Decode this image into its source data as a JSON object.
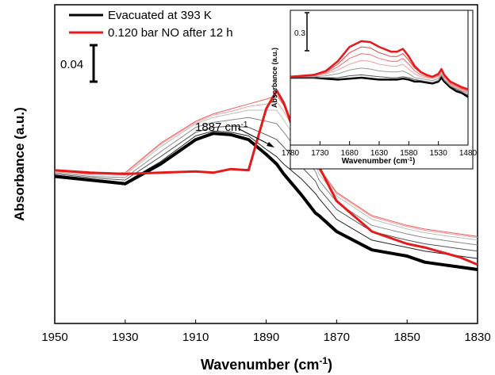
{
  "chart_data": [
    {
      "type": "line",
      "xlabel": "Wavenumber (cm",
      "xlabel_sup": "-1",
      "xlabel_close": ")",
      "ylabel": "Absorbance (a.u.)",
      "x_reversed": true,
      "xlim": [
        1950,
        1830
      ],
      "x_ticks": [
        "1950",
        "1930",
        "1910",
        "1890",
        "1870",
        "1850",
        "1830"
      ],
      "y_ticks": [],
      "grid": false,
      "legend_position": "top-left",
      "legend": [
        {
          "label": "Evacuated at 393 K",
          "color": "#000000"
        },
        {
          "label": "0.120 bar NO after 12 h",
          "color": "#e41a1c"
        }
      ],
      "scale_bar": {
        "label": "0.04",
        "value": 0.04
      },
      "annotation": {
        "text": "1887 cm",
        "sup": "-1",
        "x": 1887
      },
      "x": [
        1950,
        1940,
        1930,
        1920,
        1910,
        1905,
        1900,
        1895,
        1890,
        1887,
        1885,
        1880,
        1876,
        1875,
        1870,
        1860,
        1850,
        1845,
        1840,
        1835,
        1830
      ],
      "series": [
        {
          "name": "Evacuated at 393 K",
          "color": "#000000",
          "width": 4,
          "values": [
            0.0,
            -0.003,
            -0.006,
            0.01,
            0.03,
            0.035,
            0.034,
            0.03,
            0.018,
            0.01,
            0.002,
            -0.015,
            -0.03,
            -0.032,
            -0.045,
            -0.06,
            -0.065,
            -0.07,
            -0.072,
            -0.074,
            -0.076
          ]
        },
        {
          "name": "",
          "color": "#222222",
          "width": 1,
          "values": [
            0.001,
            -0.002,
            -0.005,
            0.012,
            0.033,
            0.037,
            0.036,
            0.033,
            0.022,
            0.016,
            0.01,
            -0.002,
            -0.014,
            -0.018,
            -0.035,
            -0.052,
            -0.058,
            -0.061,
            -0.063,
            -0.065,
            -0.067
          ]
        },
        {
          "name": "",
          "color": "#555555",
          "width": 1,
          "values": [
            0.002,
            -0.001,
            -0.003,
            0.016,
            0.036,
            0.04,
            0.041,
            0.04,
            0.034,
            0.03,
            0.024,
            0.008,
            -0.004,
            -0.01,
            -0.027,
            -0.045,
            -0.052,
            -0.055,
            -0.057,
            -0.059,
            -0.061
          ]
        },
        {
          "name": "",
          "color": "#888888",
          "width": 1,
          "values": [
            0.003,
            0.0,
            -0.001,
            0.02,
            0.04,
            0.044,
            0.046,
            0.048,
            0.045,
            0.043,
            0.036,
            0.017,
            0.004,
            -0.003,
            -0.021,
            -0.04,
            -0.047,
            -0.05,
            -0.052,
            -0.054,
            -0.056
          ]
        },
        {
          "name": "",
          "color": "#bdbdbd",
          "width": 1,
          "values": [
            0.004,
            0.001,
            0.001,
            0.024,
            0.043,
            0.048,
            0.051,
            0.054,
            0.054,
            0.054,
            0.046,
            0.024,
            0.01,
            0.002,
            -0.016,
            -0.035,
            -0.043,
            -0.046,
            -0.048,
            -0.05,
            -0.052
          ]
        },
        {
          "name": "",
          "color": "#f2a0a0",
          "width": 1,
          "values": [
            0.004,
            0.002,
            0.002,
            0.026,
            0.044,
            0.05,
            0.053,
            0.057,
            0.059,
            0.061,
            0.053,
            0.028,
            0.014,
            0.005,
            -0.014,
            -0.033,
            -0.041,
            -0.044,
            -0.046,
            -0.048,
            -0.05
          ]
        },
        {
          "name": "",
          "color": "#e86060",
          "width": 1,
          "values": [
            0.005,
            0.002,
            0.003,
            0.027,
            0.045,
            0.051,
            0.055,
            0.059,
            0.063,
            0.066,
            0.058,
            0.031,
            0.016,
            0.007,
            -0.013,
            -0.032,
            -0.04,
            -0.043,
            -0.045,
            -0.047,
            -0.049
          ]
        },
        {
          "name": "0.120 bar NO after 12 h",
          "color": "#e41a1c",
          "width": 3,
          "values": [
            0.005,
            0.003,
            0.002,
            0.003,
            0.004,
            0.003,
            0.006,
            0.005,
            0.055,
            0.07,
            0.06,
            0.02,
            0.028,
            0.008,
            -0.02,
            -0.045,
            -0.055,
            -0.058,
            -0.062,
            -0.066,
            -0.072
          ]
        }
      ]
    },
    {
      "type": "line",
      "xlabel": "Wavenumber (cm",
      "xlabel_sup": "-1",
      "xlabel_close": ")",
      "ylabel": "Absorbance (a.u.)",
      "x_reversed": true,
      "xlim": [
        1780,
        1480
      ],
      "x_ticks": [
        "1780",
        "1730",
        "1680",
        "1630",
        "1580",
        "1530",
        "1480"
      ],
      "y_ticks": [],
      "scale_bar": {
        "label": "0.3",
        "value": 0.3
      },
      "x": [
        1780,
        1740,
        1720,
        1700,
        1680,
        1660,
        1645,
        1630,
        1610,
        1600,
        1590,
        1580,
        1570,
        1560,
        1550,
        1540,
        1530,
        1525,
        1520,
        1510,
        1500,
        1490,
        1480
      ],
      "series": [
        {
          "name": "",
          "color": "#000000",
          "width": 2.5,
          "values": [
            0.0,
            0.0,
            -0.005,
            -0.01,
            -0.005,
            0.0,
            -0.005,
            -0.01,
            -0.01,
            -0.01,
            -0.005,
            -0.01,
            -0.02,
            -0.02,
            -0.025,
            -0.03,
            -0.02,
            0.0,
            -0.02,
            -0.05,
            -0.07,
            -0.08,
            -0.1
          ]
        },
        {
          "name": "",
          "color": "#555555",
          "width": 1,
          "values": [
            0.0,
            0.0,
            0.0,
            0.0,
            0.01,
            0.015,
            0.01,
            0.005,
            0.0,
            0.0,
            0.005,
            0.0,
            -0.01,
            -0.015,
            -0.02,
            -0.025,
            -0.015,
            0.01,
            -0.015,
            -0.045,
            -0.06,
            -0.075,
            -0.09
          ]
        },
        {
          "name": "",
          "color": "#999999",
          "width": 1,
          "values": [
            0.005,
            0.005,
            0.01,
            0.02,
            0.04,
            0.05,
            0.045,
            0.035,
            0.03,
            0.03,
            0.035,
            0.02,
            0.0,
            -0.005,
            -0.01,
            -0.015,
            -0.005,
            0.02,
            -0.01,
            -0.04,
            -0.055,
            -0.07,
            -0.08
          ]
        },
        {
          "name": "",
          "color": "#f2a0a0",
          "width": 1,
          "values": [
            0.005,
            0.01,
            0.02,
            0.04,
            0.07,
            0.09,
            0.085,
            0.07,
            0.06,
            0.06,
            0.07,
            0.045,
            0.02,
            0.005,
            0.0,
            -0.005,
            0.005,
            0.03,
            0.0,
            -0.035,
            -0.05,
            -0.065,
            -0.075
          ]
        },
        {
          "name": "",
          "color": "#ec7070",
          "width": 1,
          "values": [
            0.005,
            0.01,
            0.025,
            0.055,
            0.1,
            0.125,
            0.12,
            0.1,
            0.085,
            0.085,
            0.1,
            0.07,
            0.035,
            0.015,
            0.005,
            0.0,
            0.01,
            0.035,
            0.005,
            -0.03,
            -0.045,
            -0.06,
            -0.07
          ]
        },
        {
          "name": "",
          "color": "#e84040",
          "width": 1,
          "values": [
            0.005,
            0.015,
            0.03,
            0.07,
            0.13,
            0.16,
            0.155,
            0.13,
            0.11,
            0.11,
            0.125,
            0.09,
            0.05,
            0.025,
            0.01,
            0.005,
            0.015,
            0.04,
            0.01,
            -0.025,
            -0.04,
            -0.055,
            -0.065
          ]
        },
        {
          "name": "",
          "color": "#e41a1c",
          "width": 2.5,
          "values": [
            0.005,
            0.015,
            0.035,
            0.085,
            0.16,
            0.19,
            0.185,
            0.16,
            0.135,
            0.135,
            0.15,
            0.11,
            0.06,
            0.03,
            0.015,
            0.005,
            0.02,
            0.045,
            0.015,
            -0.02,
            -0.035,
            -0.05,
            -0.06
          ]
        }
      ]
    }
  ]
}
